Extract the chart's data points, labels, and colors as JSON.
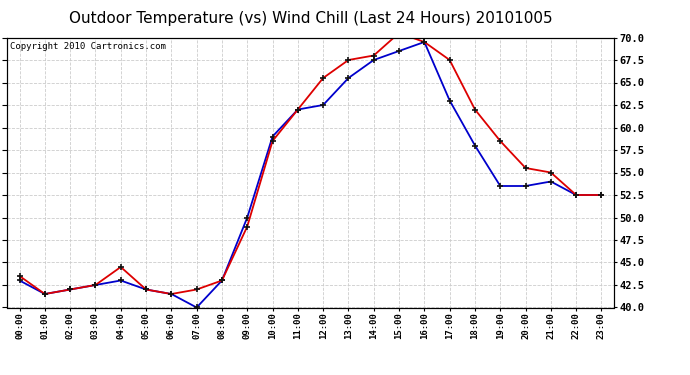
{
  "title": "Outdoor Temperature (vs) Wind Chill (Last 24 Hours) 20101005",
  "copyright": "Copyright 2010 Cartronics.com",
  "hours": [
    "00:00",
    "01:00",
    "02:00",
    "03:00",
    "04:00",
    "05:00",
    "06:00",
    "07:00",
    "08:00",
    "09:00",
    "10:00",
    "11:00",
    "12:00",
    "13:00",
    "14:00",
    "15:00",
    "16:00",
    "17:00",
    "18:00",
    "19:00",
    "20:00",
    "21:00",
    "22:00",
    "23:00"
  ],
  "outdoor_temp": [
    43.5,
    41.5,
    42.0,
    42.5,
    44.5,
    42.0,
    41.5,
    42.0,
    43.0,
    49.0,
    58.5,
    62.0,
    65.5,
    67.5,
    68.0,
    70.5,
    69.5,
    67.5,
    62.0,
    58.5,
    55.5,
    55.0,
    52.5,
    52.5
  ],
  "wind_chill": [
    43.0,
    41.5,
    42.0,
    42.5,
    43.0,
    42.0,
    41.5,
    40.0,
    43.0,
    50.0,
    59.0,
    62.0,
    62.5,
    65.5,
    67.5,
    68.5,
    69.5,
    63.0,
    58.0,
    53.5,
    53.5,
    54.0,
    52.5,
    52.5
  ],
  "ylim": [
    40.0,
    70.0
  ],
  "yticks": [
    40.0,
    42.5,
    45.0,
    47.5,
    50.0,
    52.5,
    55.0,
    57.5,
    60.0,
    62.5,
    65.0,
    67.5,
    70.0
  ],
  "temp_color": "#dd0000",
  "wind_color": "#0000cc",
  "bg_color": "#ffffff",
  "plot_bg_color": "#ffffff",
  "grid_color": "#cccccc",
  "title_fontsize": 11,
  "copyright_fontsize": 6.5
}
